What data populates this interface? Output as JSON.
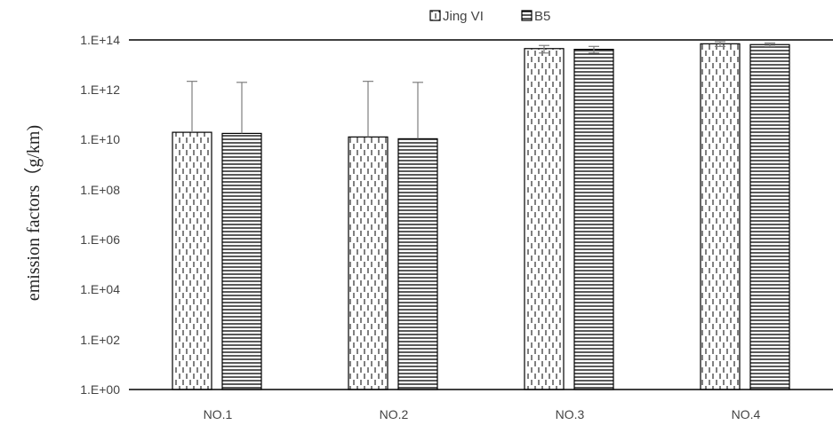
{
  "chart_data": {
    "type": "bar",
    "title": "",
    "xlabel": "",
    "ylabel": "emission factors（g/km)",
    "y_scale": "log",
    "ylim": [
      1,
      100000000000000
    ],
    "y_ticks": [
      1,
      100,
      10000,
      1000000,
      100000000,
      10000000000,
      1000000000000,
      100000000000000
    ],
    "y_tick_labels": [
      "1.E+00",
      "1.E+02",
      "1.E+04",
      "1.E+06",
      "1.E+08",
      "1.E+10",
      "1.E+12",
      "1.E+14"
    ],
    "categories": [
      "NO.1",
      "NO.2",
      "NO.3",
      "NO.4"
    ],
    "series": [
      {
        "name": "Jing VI",
        "pattern": "vertical-dashes",
        "values": [
          20000000000,
          13000000000,
          45000000000000,
          70000000000000
        ],
        "error_upper": [
          2200000000000,
          2200000000000,
          60000000000000,
          85000000000000
        ],
        "error_lower": [
          null,
          null,
          30000000000000,
          55000000000000
        ]
      },
      {
        "name": "B5",
        "pattern": "horizontal-lines",
        "values": [
          18000000000,
          11000000000,
          42000000000000,
          65000000000000
        ],
        "error_upper": [
          2000000000000,
          2000000000000,
          55000000000000,
          75000000000000
        ],
        "error_lower": [
          null,
          null,
          30000000000000,
          55000000000000
        ]
      }
    ],
    "legend_position": "top",
    "grid": false,
    "colors": {
      "bar_fill": "#ffffff",
      "bar_stroke": "#000000",
      "axis": "#000000",
      "error_bar": "#7f7f7f"
    }
  }
}
